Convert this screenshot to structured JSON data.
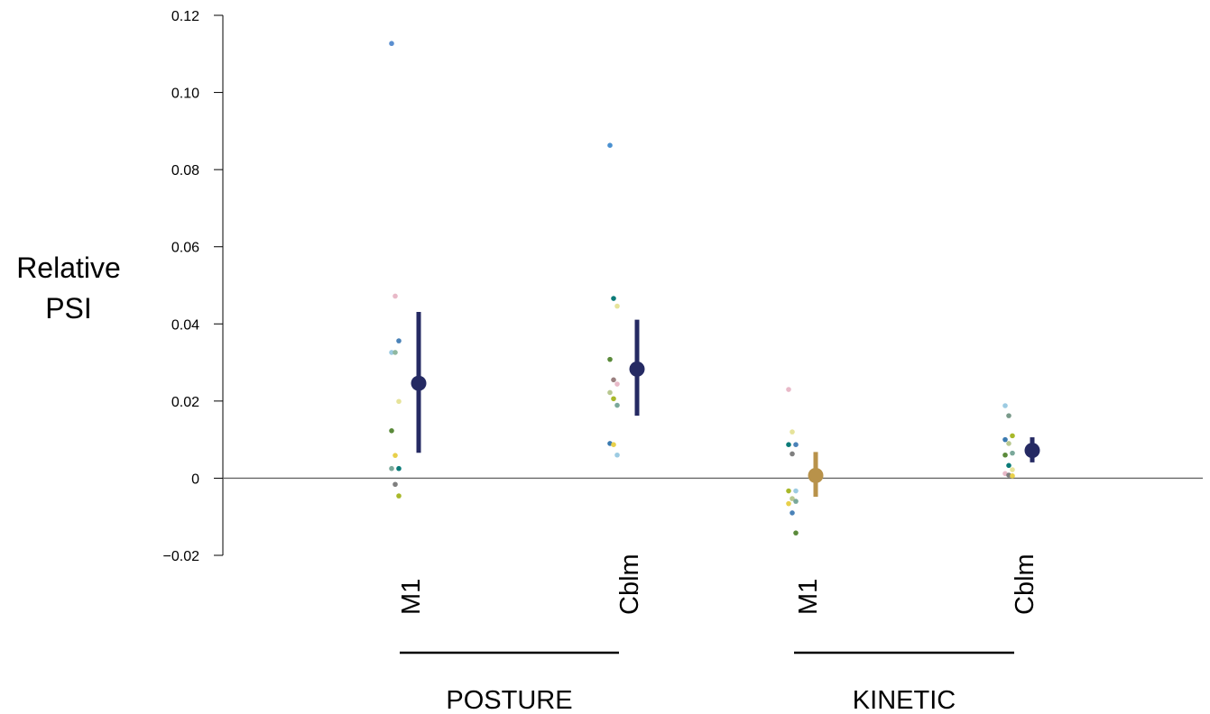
{
  "chart_data": {
    "type": "scatter",
    "title": "",
    "ylabel": [
      "Relative",
      "PSI"
    ],
    "ylim": [
      -0.02,
      0.12
    ],
    "yticks": [
      -0.02,
      0,
      0.02,
      0.04,
      0.06,
      0.08,
      0.1,
      0.12
    ],
    "ytick_labels": [
      "−0.02",
      "0",
      "0.02",
      "0.04",
      "0.06",
      "0.08",
      "0.10",
      "0.12"
    ],
    "zero_line": true,
    "grid": false,
    "groups": [
      {
        "name": "POSTURE",
        "categories": [
          {
            "label": "M1",
            "mean_color": "#252a63",
            "mean": 0.0246,
            "ci": [
              0.0066,
              0.0431
            ],
            "points": [
              {
                "y": 0.1127,
                "color": "#5b8fd0"
              },
              {
                "y": 0.0472,
                "color": "#e8b9c8"
              },
              {
                "y": 0.0356,
                "color": "#4a82b8"
              },
              {
                "y": 0.0326,
                "color": "#9ccbe2"
              },
              {
                "y": 0.0326,
                "color": "#8fb8a0"
              },
              {
                "y": 0.0199,
                "color": "#e6e39a"
              },
              {
                "y": 0.0123,
                "color": "#5a8a3a"
              },
              {
                "y": 0.0059,
                "color": "#e8d04a"
              },
              {
                "y": 0.0025,
                "color": "#0a7b78"
              },
              {
                "y": 0.0025,
                "color": "#7aa89a"
              },
              {
                "y": -0.0016,
                "color": "#7f7f7f"
              },
              {
                "y": -0.0046,
                "color": "#a8b82a"
              }
            ]
          },
          {
            "label": "Cblm",
            "mean_color": "#252a63",
            "mean": 0.0283,
            "ci": [
              0.0162,
              0.0411
            ],
            "points": [
              {
                "y": 0.0863,
                "color": "#4a90d0"
              },
              {
                "y": 0.0466,
                "color": "#0a7b78"
              },
              {
                "y": 0.0446,
                "color": "#e6e39a"
              },
              {
                "y": 0.0308,
                "color": "#5a8a3a"
              },
              {
                "y": 0.0255,
                "color": "#9a7f7f"
              },
              {
                "y": 0.0244,
                "color": "#e8b9c8"
              },
              {
                "y": 0.0222,
                "color": "#b8c890"
              },
              {
                "y": 0.0206,
                "color": "#a8b82a"
              },
              {
                "y": 0.0189,
                "color": "#7aa89a"
              },
              {
                "y": 0.009,
                "color": "#3a7ab0"
              },
              {
                "y": 0.0087,
                "color": "#e8d04a"
              },
              {
                "y": 0.006,
                "color": "#9ccbe2"
              }
            ]
          }
        ]
      },
      {
        "name": "KINETIC",
        "categories": [
          {
            "label": "M1",
            "mean_color": "#b8924a",
            "mean": 0.0007,
            "ci": [
              -0.0048,
              0.0068
            ],
            "points": [
              {
                "y": 0.023,
                "color": "#e8b9c8"
              },
              {
                "y": 0.012,
                "color": "#e6e39a"
              },
              {
                "y": 0.0087,
                "color": "#4a82b8"
              },
              {
                "y": 0.0087,
                "color": "#0a7b78"
              },
              {
                "y": 0.0063,
                "color": "#7f7f7f"
              },
              {
                "y": -0.0033,
                "color": "#9ccbe2"
              },
              {
                "y": -0.0033,
                "color": "#a8b82a"
              },
              {
                "y": -0.0053,
                "color": "#b8c890"
              },
              {
                "y": -0.006,
                "color": "#7aa89a"
              },
              {
                "y": -0.0066,
                "color": "#e8d04a"
              },
              {
                "y": -0.009,
                "color": "#4a82b8"
              },
              {
                "y": -0.0142,
                "color": "#5a8a3a"
              }
            ]
          },
          {
            "label": "Cblm",
            "mean_color": "#252a63",
            "mean": 0.0072,
            "ci": [
              0.0041,
              0.0106
            ],
            "points": [
              {
                "y": 0.0188,
                "color": "#9ccbe2"
              },
              {
                "y": 0.0162,
                "color": "#7a9a8a"
              },
              {
                "y": 0.011,
                "color": "#a8b82a"
              },
              {
                "y": 0.01,
                "color": "#3a7ab0"
              },
              {
                "y": 0.009,
                "color": "#b8c890"
              },
              {
                "y": 0.0065,
                "color": "#7aa89a"
              },
              {
                "y": 0.006,
                "color": "#5a8a3a"
              },
              {
                "y": 0.0033,
                "color": "#0a7b78"
              },
              {
                "y": 0.0022,
                "color": "#e6e39a"
              },
              {
                "y": 0.0012,
                "color": "#e8b9c8"
              },
              {
                "y": 0.0008,
                "color": "#7f7f7f"
              },
              {
                "y": 0.0006,
                "color": "#e8d04a"
              }
            ]
          }
        ]
      }
    ]
  }
}
